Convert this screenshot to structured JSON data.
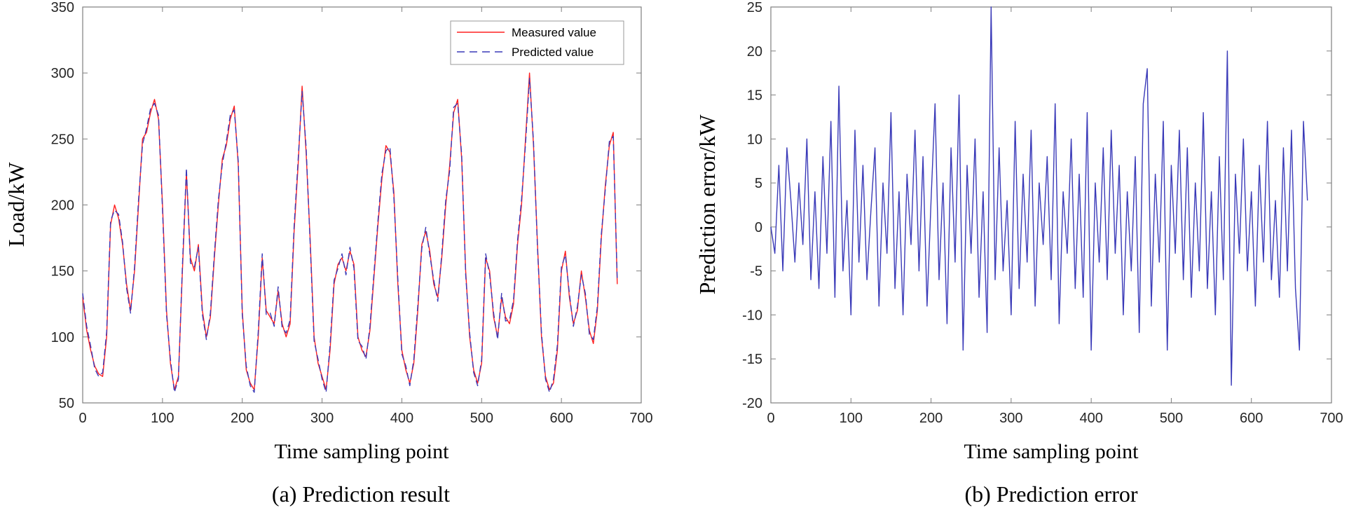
{
  "chart_data": [
    {
      "type": "line",
      "caption": "(a) Prediction result",
      "xlabel": "Time sampling point",
      "ylabel": "Load/kW",
      "xlim": [
        0,
        700
      ],
      "ylim": [
        50,
        350
      ],
      "xticks": [
        "0",
        "100",
        "200",
        "300",
        "400",
        "500",
        "600",
        "700"
      ],
      "yticks": [
        "50",
        "100",
        "150",
        "200",
        "250",
        "300",
        "350"
      ],
      "legend_position": "top-right",
      "x": [
        0,
        5,
        10,
        15,
        20,
        25,
        30,
        35,
        40,
        45,
        50,
        55,
        60,
        65,
        70,
        75,
        80,
        85,
        90,
        95,
        100,
        105,
        110,
        115,
        120,
        125,
        130,
        135,
        140,
        145,
        150,
        155,
        160,
        165,
        170,
        175,
        180,
        185,
        190,
        195,
        200,
        205,
        210,
        215,
        220,
        225,
        230,
        235,
        240,
        245,
        250,
        255,
        260,
        265,
        270,
        275,
        280,
        285,
        290,
        295,
        300,
        305,
        310,
        315,
        320,
        325,
        330,
        335,
        340,
        345,
        350,
        355,
        360,
        365,
        370,
        375,
        380,
        385,
        390,
        395,
        400,
        405,
        410,
        415,
        420,
        425,
        430,
        435,
        440,
        445,
        450,
        455,
        460,
        465,
        470,
        475,
        480,
        485,
        490,
        495,
        500,
        505,
        510,
        515,
        520,
        525,
        530,
        535,
        540,
        545,
        550,
        555,
        560,
        565,
        570,
        575,
        580,
        585,
        590,
        595,
        600,
        605,
        610,
        615,
        620,
        625,
        630,
        635,
        640,
        645,
        650,
        655,
        660,
        665,
        670
      ],
      "series": [
        {
          "name": "Measured value",
          "color": "#ff2020",
          "dash": "solid",
          "values": [
            130,
            105,
            90,
            78,
            72,
            70,
            100,
            185,
            200,
            190,
            170,
            140,
            120,
            150,
            200,
            250,
            255,
            270,
            280,
            265,
            200,
            120,
            80,
            60,
            70,
            150,
            225,
            160,
            150,
            170,
            120,
            100,
            115,
            160,
            200,
            235,
            245,
            265,
            275,
            230,
            120,
            75,
            65,
            60,
            100,
            160,
            120,
            115,
            110,
            135,
            110,
            100,
            110,
            180,
            230,
            290,
            240,
            175,
            100,
            80,
            70,
            60,
            90,
            140,
            155,
            160,
            150,
            165,
            155,
            100,
            90,
            85,
            105,
            145,
            185,
            220,
            245,
            240,
            210,
            140,
            90,
            75,
            65,
            80,
            120,
            170,
            180,
            165,
            140,
            130,
            160,
            200,
            230,
            270,
            280,
            235,
            150,
            100,
            75,
            65,
            80,
            160,
            150,
            115,
            100,
            130,
            115,
            110,
            125,
            170,
            200,
            250,
            300,
            245,
            170,
            100,
            70,
            60,
            65,
            90,
            150,
            165,
            130,
            110,
            120,
            150,
            130,
            105,
            95,
            120,
            175,
            215,
            245,
            255,
            140
          ]
        },
        {
          "name": "Predicted value",
          "color": "#3a3ab8",
          "dash": "dashed",
          "values": [
            133,
            108,
            93,
            76,
            70,
            73,
            104,
            188,
            196,
            193,
            172,
            137,
            118,
            153,
            204,
            246,
            258,
            273,
            277,
            268,
            196,
            117,
            83,
            58,
            68,
            154,
            228,
            156,
            153,
            168,
            117,
            98,
            118,
            163,
            204,
            231,
            248,
            268,
            272,
            233,
            117,
            78,
            63,
            58,
            104,
            163,
            117,
            118,
            108,
            138,
            107,
            103,
            113,
            184,
            234,
            286,
            244,
            172,
            97,
            83,
            68,
            58,
            94,
            143,
            152,
            163,
            147,
            168,
            152,
            97,
            93,
            83,
            108,
            148,
            188,
            224,
            241,
            244,
            206,
            144,
            87,
            78,
            63,
            83,
            124,
            167,
            183,
            162,
            143,
            127,
            163,
            204,
            226,
            274,
            277,
            238,
            147,
            103,
            73,
            63,
            83,
            163,
            147,
            118,
            98,
            133,
            112,
            113,
            128,
            173,
            204,
            246,
            296,
            248,
            167,
            103,
            68,
            58,
            68,
            94,
            153,
            162,
            133,
            108,
            123,
            147,
            133,
            102,
            98,
            123,
            178,
            212,
            248,
            252,
            143
          ]
        }
      ]
    },
    {
      "type": "line",
      "caption": "(b) Prediction error",
      "xlabel": "Time sampling point",
      "ylabel": "Prediction error/kW",
      "xlim": [
        0,
        700
      ],
      "ylim": [
        -20,
        25
      ],
      "xticks": [
        "0",
        "100",
        "200",
        "300",
        "400",
        "500",
        "600",
        "700"
      ],
      "yticks": [
        "-20",
        "-15",
        "-10",
        "-5",
        "0",
        "5",
        "10",
        "15",
        "20",
        "25"
      ],
      "series": [
        {
          "name": "Prediction error",
          "color": "#3a3ab8",
          "x": [
            0,
            5,
            10,
            15,
            20,
            25,
            30,
            35,
            40,
            45,
            50,
            55,
            60,
            65,
            70,
            75,
            80,
            85,
            90,
            95,
            100,
            105,
            110,
            115,
            120,
            125,
            130,
            135,
            140,
            145,
            150,
            155,
            160,
            165,
            170,
            175,
            180,
            185,
            190,
            195,
            200,
            205,
            210,
            215,
            220,
            225,
            230,
            235,
            240,
            245,
            250,
            255,
            260,
            265,
            270,
            275,
            280,
            285,
            290,
            295,
            300,
            305,
            310,
            315,
            320,
            325,
            330,
            335,
            340,
            345,
            350,
            355,
            360,
            365,
            370,
            375,
            380,
            385,
            390,
            395,
            400,
            405,
            410,
            415,
            420,
            425,
            430,
            435,
            440,
            445,
            450,
            455,
            460,
            465,
            470,
            475,
            480,
            485,
            490,
            495,
            500,
            505,
            510,
            515,
            520,
            525,
            530,
            535,
            540,
            545,
            550,
            555,
            560,
            565,
            570,
            575,
            580,
            585,
            590,
            595,
            600,
            605,
            610,
            615,
            620,
            625,
            630,
            635,
            640,
            645,
            650,
            655,
            660,
            665,
            670
          ],
          "values": [
            0,
            -3,
            7,
            -5,
            9,
            3,
            -4,
            5,
            -2,
            10,
            -6,
            4,
            -7,
            8,
            -3,
            12,
            -8,
            16,
            -5,
            3,
            -10,
            11,
            -4,
            7,
            -6,
            2,
            9,
            -9,
            5,
            -3,
            13,
            -7,
            4,
            -10,
            6,
            -2,
            11,
            -5,
            8,
            -9,
            3,
            14,
            -6,
            5,
            -11,
            9,
            -4,
            15,
            -14,
            7,
            -3,
            10,
            -8,
            4,
            -12,
            25,
            -6,
            9,
            -5,
            3,
            -10,
            12,
            -7,
            6,
            -4,
            11,
            -9,
            5,
            -2,
            8,
            -6,
            14,
            -11,
            4,
            -3,
            10,
            -7,
            6,
            -8,
            13,
            -14,
            5,
            -4,
            9,
            -6,
            11,
            -3,
            7,
            -10,
            4,
            -5,
            8,
            -12,
            14,
            18,
            -9,
            6,
            -4,
            12,
            -14,
            7,
            -3,
            11,
            -6,
            9,
            -8,
            5,
            -5,
            13,
            -7,
            4,
            -10,
            8,
            -6,
            20,
            -18,
            6,
            -3,
            10,
            -5,
            4,
            -9,
            7,
            -4,
            12,
            -6,
            3,
            -8,
            9,
            -5,
            11,
            -7,
            -14,
            12,
            3
          ]
        }
      ]
    }
  ]
}
